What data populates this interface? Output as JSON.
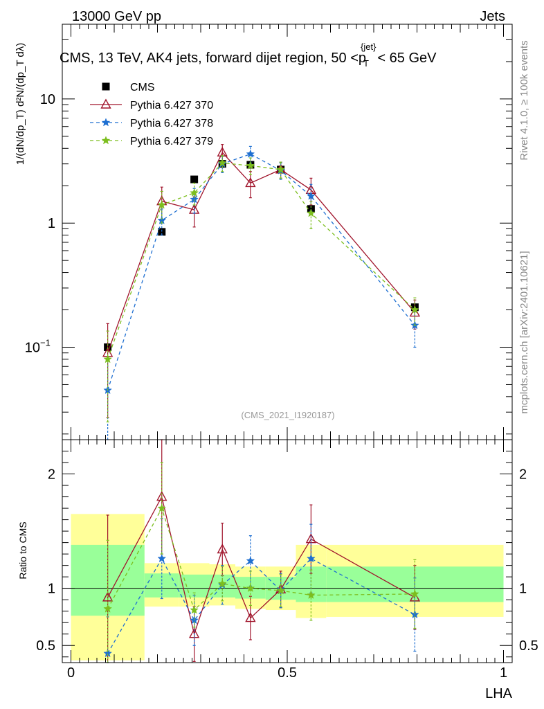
{
  "header": {
    "energy_label": "13000 GeV pp",
    "category_label": "Jets",
    "side_label": "Rivet 4.1.0, ≥ 100k events",
    "side_label_lower": "mcplots.cern.ch [arXiv:2401.10621]"
  },
  "chart_data": [
    {
      "type": "scatter",
      "panel": "main",
      "title": "CMS, 13 TeV, AK4 jets, forward dijet region, 50 <p",
      "title_sub": "T",
      "title_sup": "{jet}",
      "title_tail": "< 65 GeV",
      "watermark": "(CMS_2021_I1920187)",
      "ylabel": "1/(dN/dp_T) d²N/(dp_T dλ)",
      "yscale": "log",
      "ylim": [
        0.018,
        40
      ],
      "xlim": [
        -0.02,
        1.02
      ],
      "y_ticks": [
        {
          "value": 0.1,
          "label": "10",
          "sup": "−1"
        },
        {
          "value": 1,
          "label": "1",
          "sup": ""
        },
        {
          "value": 10,
          "label": "10",
          "sup": ""
        }
      ],
      "x": [
        0.085,
        0.21,
        0.285,
        0.35,
        0.415,
        0.485,
        0.555,
        0.795
      ],
      "series": [
        {
          "name": "CMS",
          "legend": "CMS",
          "color": "#000000",
          "marker": "square",
          "dash": "",
          "values": [
            0.1,
            0.85,
            2.25,
            3.0,
            2.95,
            2.7,
            1.3,
            0.21
          ],
          "err_lo": [
            0.0,
            0.0,
            0.0,
            0.0,
            0.0,
            0.0,
            0.0,
            0.0
          ],
          "err_hi": [
            0.0,
            0.0,
            0.0,
            0.0,
            0.0,
            0.0,
            0.0,
            0.0
          ]
        },
        {
          "name": "Pythia 6.427 370",
          "legend": "Pythia 6.427 370",
          "color": "#a0142b",
          "marker": "triangle",
          "dash": "",
          "values": [
            0.09,
            1.5,
            1.28,
            3.7,
            2.1,
            2.7,
            1.85,
            0.19
          ],
          "err_lo": [
            0.063,
            0.45,
            0.35,
            0.6,
            0.5,
            0.4,
            0.45,
            0.05
          ],
          "err_hi": [
            0.065,
            0.45,
            0.35,
            0.6,
            0.5,
            0.4,
            0.45,
            0.05
          ]
        },
        {
          "name": "Pythia 6.427 378",
          "legend": "Pythia 6.427 378",
          "color": "#1e6fd1",
          "marker": "star",
          "dash": "5,4",
          "values": [
            0.045,
            1.05,
            1.55,
            3.0,
            3.6,
            2.65,
            1.65,
            0.15
          ],
          "err_lo": [
            0.032,
            0.25,
            0.35,
            0.45,
            0.55,
            0.4,
            0.4,
            0.05
          ],
          "err_hi": [
            0.035,
            0.25,
            0.35,
            0.45,
            0.55,
            0.4,
            0.4,
            0.05
          ]
        },
        {
          "name": "Pythia 6.427 379",
          "legend": "Pythia 6.427 379",
          "color": "#7cbe1e",
          "marker": "star",
          "dash": "5,4",
          "values": [
            0.08,
            1.4,
            1.75,
            3.05,
            2.9,
            2.7,
            1.2,
            0.2
          ],
          "err_lo": [
            0.055,
            0.4,
            0.35,
            0.45,
            0.45,
            0.4,
            0.3,
            0.05
          ],
          "err_hi": [
            0.055,
            0.4,
            0.35,
            0.45,
            0.45,
            0.4,
            0.3,
            0.05
          ]
        }
      ]
    },
    {
      "type": "scatter",
      "panel": "ratio",
      "ylabel": "Ratio to CMS",
      "xlabel": "LHA",
      "ylim": [
        0.35,
        2.3
      ],
      "xlim": [
        -0.02,
        1.02
      ],
      "y_ticks": [
        {
          "value": 0.5,
          "label": "0.5"
        },
        {
          "value": 1,
          "label": "1"
        },
        {
          "value": 2,
          "label": "2"
        }
      ],
      "x_ticks": [
        {
          "value": 0,
          "label": "0"
        },
        {
          "value": 0.5,
          "label": "0.5"
        },
        {
          "value": 1,
          "label": "1"
        }
      ],
      "bands": [
        {
          "x0": 0.0,
          "x1": 0.17,
          "yellow": [
            0.37,
            1.65
          ],
          "green": [
            0.76,
            1.38
          ]
        },
        {
          "x0": 0.17,
          "x1": 0.25,
          "yellow": [
            0.84,
            1.22
          ],
          "green": [
            0.92,
            1.13
          ]
        },
        {
          "x0": 0.25,
          "x1": 0.32,
          "yellow": [
            0.84,
            1.22
          ],
          "green": [
            0.92,
            1.12
          ]
        },
        {
          "x0": 0.32,
          "x1": 0.38,
          "yellow": [
            0.85,
            1.21
          ],
          "green": [
            0.92,
            1.12
          ]
        },
        {
          "x0": 0.38,
          "x1": 0.45,
          "yellow": [
            0.82,
            1.19
          ],
          "green": [
            0.91,
            1.1
          ]
        },
        {
          "x0": 0.45,
          "x1": 0.52,
          "yellow": [
            0.81,
            1.19
          ],
          "green": [
            0.9,
            1.1
          ]
        },
        {
          "x0": 0.52,
          "x1": 0.59,
          "yellow": [
            0.74,
            1.38
          ],
          "green": [
            0.88,
            1.19
          ]
        },
        {
          "x0": 0.59,
          "x1": 1.0,
          "yellow": [
            0.75,
            1.38
          ],
          "green": [
            0.88,
            1.19
          ]
        }
      ],
      "x": [
        0.085,
        0.21,
        0.285,
        0.35,
        0.415,
        0.485,
        0.555,
        0.795
      ],
      "series": [
        {
          "name": "Pythia 6.427 370",
          "color": "#a0142b",
          "marker": "triangle",
          "dash": "",
          "values": [
            0.92,
            1.8,
            0.6,
            1.34,
            0.74,
            0.99,
            1.43,
            0.92
          ],
          "err_lo": [
            0.72,
            0.5,
            0.24,
            0.23,
            0.19,
            0.16,
            0.3,
            0.28
          ],
          "err_hi": [
            0.72,
            0.5,
            0.24,
            0.23,
            0.19,
            0.16,
            0.3,
            0.28
          ]
        },
        {
          "name": "Pythia 6.427 378",
          "color": "#1e6fd1",
          "marker": "star",
          "dash": "5,4",
          "values": [
            0.43,
            1.26,
            0.72,
            1.03,
            1.24,
            0.98,
            1.26,
            0.77
          ],
          "err_lo": [
            0.32,
            0.35,
            0.22,
            0.17,
            0.22,
            0.15,
            0.3,
            0.32
          ],
          "err_hi": [
            0.32,
            0.35,
            0.22,
            0.17,
            0.22,
            0.15,
            0.3,
            0.32
          ]
        },
        {
          "name": "Pythia 6.427 379",
          "color": "#7cbe1e",
          "marker": "star",
          "dash": "5,4",
          "values": [
            0.82,
            1.7,
            0.81,
            1.04,
            1.0,
            0.98,
            0.94,
            0.95
          ],
          "err_lo": [
            0.6,
            0.4,
            0.15,
            0.15,
            0.15,
            0.14,
            0.22,
            0.3
          ],
          "err_hi": [
            0.6,
            0.4,
            0.15,
            0.15,
            0.15,
            0.14,
            0.22,
            0.3
          ]
        }
      ]
    }
  ]
}
